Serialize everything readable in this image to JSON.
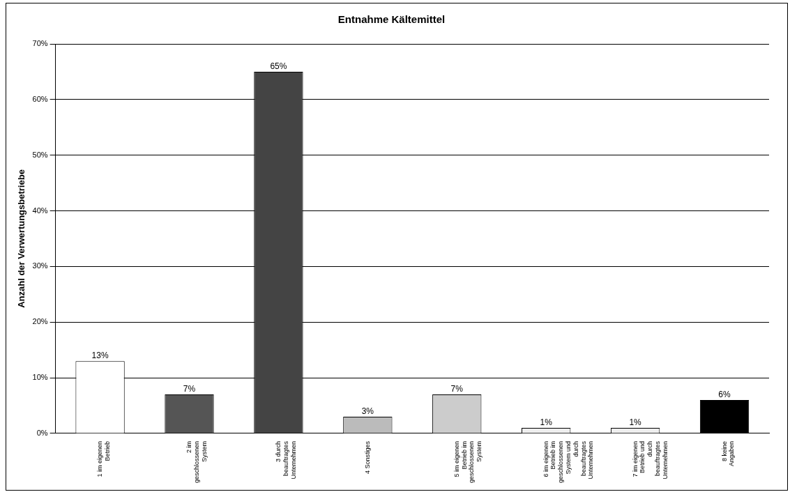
{
  "chart_data": {
    "type": "bar",
    "title": "Entnahme Kältemittel",
    "ylabel": "Anzahl der Verwertungsbetriebe",
    "categories": [
      "1 im eigenen Betrieb",
      "2 im geschlossenen System",
      "3 durch beauftragtes Unternehmen",
      "4 Sonstiges",
      "5 im eigenen Betrieb im geschlossenen System",
      "6 im eigenen Betrieb im geschlossenen System und durch beauftragtes Unternehmen",
      "7 im eigenen Betrieb und durch beauftragtes Unternehmen",
      "8 keine Angaben"
    ],
    "values": [
      13,
      7,
      65,
      3,
      7,
      1,
      1,
      6
    ],
    "colors": [
      "#ffffff",
      "#555555",
      "#444444",
      "#bbbbbb",
      "#cccccc",
      "#eeeeee",
      "#eeeeee",
      "#000000"
    ],
    "value_labels": [
      "13%",
      "7%",
      "65%",
      "3%",
      "7%",
      "1%",
      "1%",
      "6%"
    ],
    "ylim": [
      0,
      70
    ],
    "yticks": [
      {
        "value": 0,
        "label": "0%"
      },
      {
        "value": 10,
        "label": "10%"
      },
      {
        "value": 20,
        "label": "20%"
      },
      {
        "value": 30,
        "label": "30%"
      },
      {
        "value": 40,
        "label": "40%"
      },
      {
        "value": 50,
        "label": "50%"
      },
      {
        "value": 60,
        "label": "60%"
      },
      {
        "value": 70,
        "label": "70%"
      }
    ],
    "grid": "y",
    "legend": false
  }
}
